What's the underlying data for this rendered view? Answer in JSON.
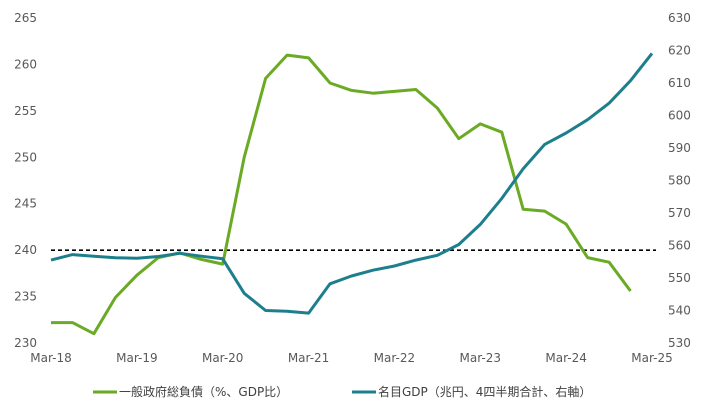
{
  "chart_data": {
    "type": "line",
    "x": [
      "2018-03",
      "2018-06",
      "2018-09",
      "2018-12",
      "2019-03",
      "2019-06",
      "2019-09",
      "2019-12",
      "2020-03",
      "2020-06",
      "2020-09",
      "2020-12",
      "2021-03",
      "2021-06",
      "2021-09",
      "2021-12",
      "2022-03",
      "2022-06",
      "2022-09",
      "2022-12",
      "2023-03",
      "2023-06",
      "2023-09",
      "2023-12",
      "2024-03",
      "2024-06",
      "2024-09",
      "2024-12",
      "2025-03"
    ],
    "x_tick_labels": [
      "Mar-18",
      "Mar-19",
      "Mar-20",
      "Mar-21",
      "Mar-22",
      "Mar-23",
      "Mar-24",
      "Mar-25"
    ],
    "series": [
      {
        "name": "一般政府総負債（%、GDP比）",
        "axis": "left",
        "color": "#6aaa24",
        "values": [
          232.2,
          232.2,
          231.0,
          234.9,
          237.3,
          239.2,
          239.7,
          239.0,
          238.5,
          250.0,
          258.5,
          261.0,
          260.7,
          258.0,
          257.2,
          256.9,
          257.1,
          257.3,
          255.3,
          252.0,
          253.6,
          252.7,
          244.4,
          244.2,
          242.8,
          239.2,
          238.7,
          235.6,
          null
        ]
      },
      {
        "name": "名目GDP（兆円、4四半期合計、右軸）",
        "axis": "right",
        "color": "#1e7f8c",
        "values": [
          555.5,
          557.2,
          556.7,
          556.2,
          556.1,
          556.6,
          557.6,
          556.7,
          555.9,
          545.3,
          540.0,
          539.8,
          539.2,
          548.2,
          550.6,
          552.4,
          553.7,
          555.5,
          557.0,
          560.3,
          566.5,
          574.5,
          583.6,
          591.1,
          594.6,
          598.7,
          603.8,
          610.7,
          619.1
        ]
      }
    ],
    "reference_line": {
      "axis": "left",
      "value": 240,
      "style": "dashed",
      "color": "#000000"
    },
    "y_left": {
      "ylim": [
        230,
        265
      ],
      "ticks": [
        230,
        235,
        240,
        245,
        250,
        255,
        260,
        265
      ]
    },
    "y_right": {
      "ylim": [
        530,
        630
      ],
      "ticks": [
        530,
        540,
        550,
        560,
        570,
        580,
        590,
        600,
        610,
        620,
        630
      ]
    },
    "grid": false,
    "legend_position": "bottom"
  }
}
